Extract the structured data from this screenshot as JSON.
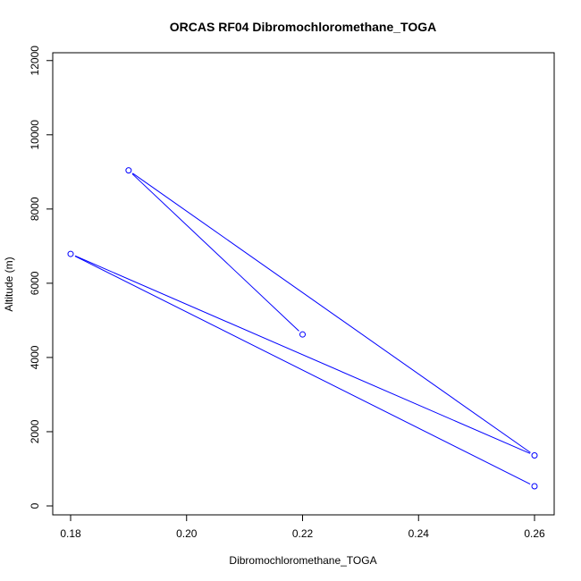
{
  "chart_data": {
    "type": "line",
    "title": "ORCAS RF04 Dibromochloromethane_TOGA",
    "xlabel": "Dibromochloromethane_TOGA",
    "ylabel": "Altitude (m)",
    "xlim": [
      0.18,
      0.26
    ],
    "ylim": [
      0,
      12500
    ],
    "x_ticks": [
      "0.18",
      "0.20",
      "0.22",
      "0.24",
      "0.26"
    ],
    "y_ticks": [
      "0",
      "2000",
      "4000",
      "6000",
      "8000",
      "10000",
      "12000"
    ],
    "series": [
      {
        "color": "#0000ff",
        "x": [
          0.26,
          0.18,
          0.26,
          0.19,
          0.22
        ],
        "y": [
          530,
          6790,
          1360,
          9040,
          4620
        ]
      }
    ],
    "markers": "open-circle",
    "grid": false,
    "legend": "none"
  }
}
